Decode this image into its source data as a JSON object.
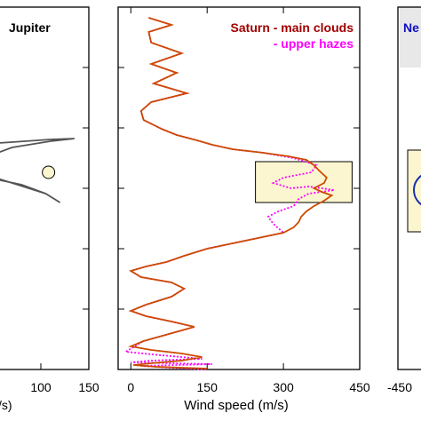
{
  "colors": {
    "frame": "#000000",
    "jupiter_profile": "#555555",
    "saturn_clouds": "#cc4a00",
    "saturn_hazes": "#ff00ff",
    "saturn_clouds_label": "#a00000",
    "saturn_hazes_label": "#ff00ff",
    "neptune_label": "#1010c0",
    "neptune_circle": "#1a2fb0",
    "highlight_fill": "#fbf6cf",
    "neptune_legend_fill": "#e8e8e8"
  },
  "chart_data": [
    {
      "panel": "jupiter",
      "type": "line",
      "title": "Jupiter",
      "xlabel": "",
      "xlabel_fragment": "/s)",
      "xticks": [
        "100",
        "150"
      ],
      "series": [
        {
          "x": [
            -2,
            25,
            70,
            110,
            135,
            110,
            70,
            40,
            30,
            45,
            80,
            105,
            120,
            105,
            70,
            40,
            10,
            0
          ],
          "y": [
            165,
            163,
            160,
            157,
            156,
            159,
            166,
            178,
            192,
            200,
            208,
            218,
            228,
            218,
            206,
            196,
            190,
            188
          ]
        }
      ],
      "marker": {
        "x": 108,
        "y": 194
      }
    },
    {
      "panel": "saturn",
      "type": "line",
      "xlabel": "Wind speed (m/s)",
      "xlim": [
        -25,
        450
      ],
      "xticks": [
        "0",
        "150",
        "300",
        "450"
      ],
      "tick_values": [
        0,
        150,
        300,
        450
      ],
      "series": [
        {
          "name": "Saturn - main clouds",
          "x": [
            35,
            80,
            35,
            40,
            100,
            40,
            90,
            45,
            110,
            40,
            20,
            25,
            60,
            90,
            130,
            160,
            200,
            260,
            310,
            345,
            360,
            370,
            385,
            380,
            360,
            375,
            395,
            380,
            360,
            345,
            335,
            330,
            320,
            300,
            250,
            200,
            150,
            105,
            70,
            30,
            0,
            20,
            80,
            105,
            80,
            30,
            0,
            30,
            80,
            125,
            75,
            25,
            0,
            40,
            100,
            140,
            100,
            40,
            5,
            50,
            150
          ],
          "y": [
            20,
            28,
            36,
            48,
            60,
            72,
            82,
            94,
            105,
            115,
            125,
            135,
            145,
            152,
            158,
            163,
            168,
            172,
            176,
            180,
            186,
            192,
            200,
            206,
            212,
            216,
            220,
            226,
            232,
            238,
            244,
            250,
            256,
            262,
            268,
            274,
            280,
            288,
            295,
            300,
            305,
            312,
            318,
            325,
            334,
            343,
            350,
            356,
            362,
            368,
            376,
            384,
            390,
            394,
            398,
            402,
            406,
            409,
            411,
            413,
            415
          ]
        },
        {
          "name": "- upper hazes",
          "x": [
            35,
            80,
            35,
            40,
            100,
            40,
            90,
            45,
            110,
            40,
            20,
            25,
            60,
            90,
            130,
            160,
            200,
            260,
            320,
            365,
            355,
            300,
            280,
            315,
            350,
            400,
            350,
            330,
            320,
            290,
            270,
            280,
            300,
            250,
            200,
            150,
            105,
            70,
            30,
            0,
            20,
            80,
            105,
            80,
            30,
            0,
            30,
            80,
            125,
            75,
            25,
            -10,
            60,
            140,
            40,
            0,
            160,
            20,
            80,
            150
          ],
          "y": [
            20,
            28,
            36,
            48,
            60,
            72,
            82,
            94,
            105,
            115,
            125,
            135,
            145,
            152,
            158,
            163,
            168,
            172,
            178,
            186,
            194,
            200,
            206,
            212,
            210,
            214,
            218,
            224,
            232,
            238,
            244,
            252,
            262,
            268,
            274,
            280,
            288,
            295,
            300,
            305,
            312,
            318,
            325,
            334,
            343,
            350,
            356,
            362,
            368,
            376,
            384,
            396,
            400,
            404,
            406,
            408,
            410,
            412,
            414,
            416
          ]
        }
      ],
      "highlight_box": {
        "x0": 245,
        "x1": 435,
        "y0": 182,
        "y1": 228
      }
    },
    {
      "panel": "neptune",
      "type": "line",
      "legend_fragment": "Ne",
      "xticks": [
        "-450"
      ]
    }
  ]
}
